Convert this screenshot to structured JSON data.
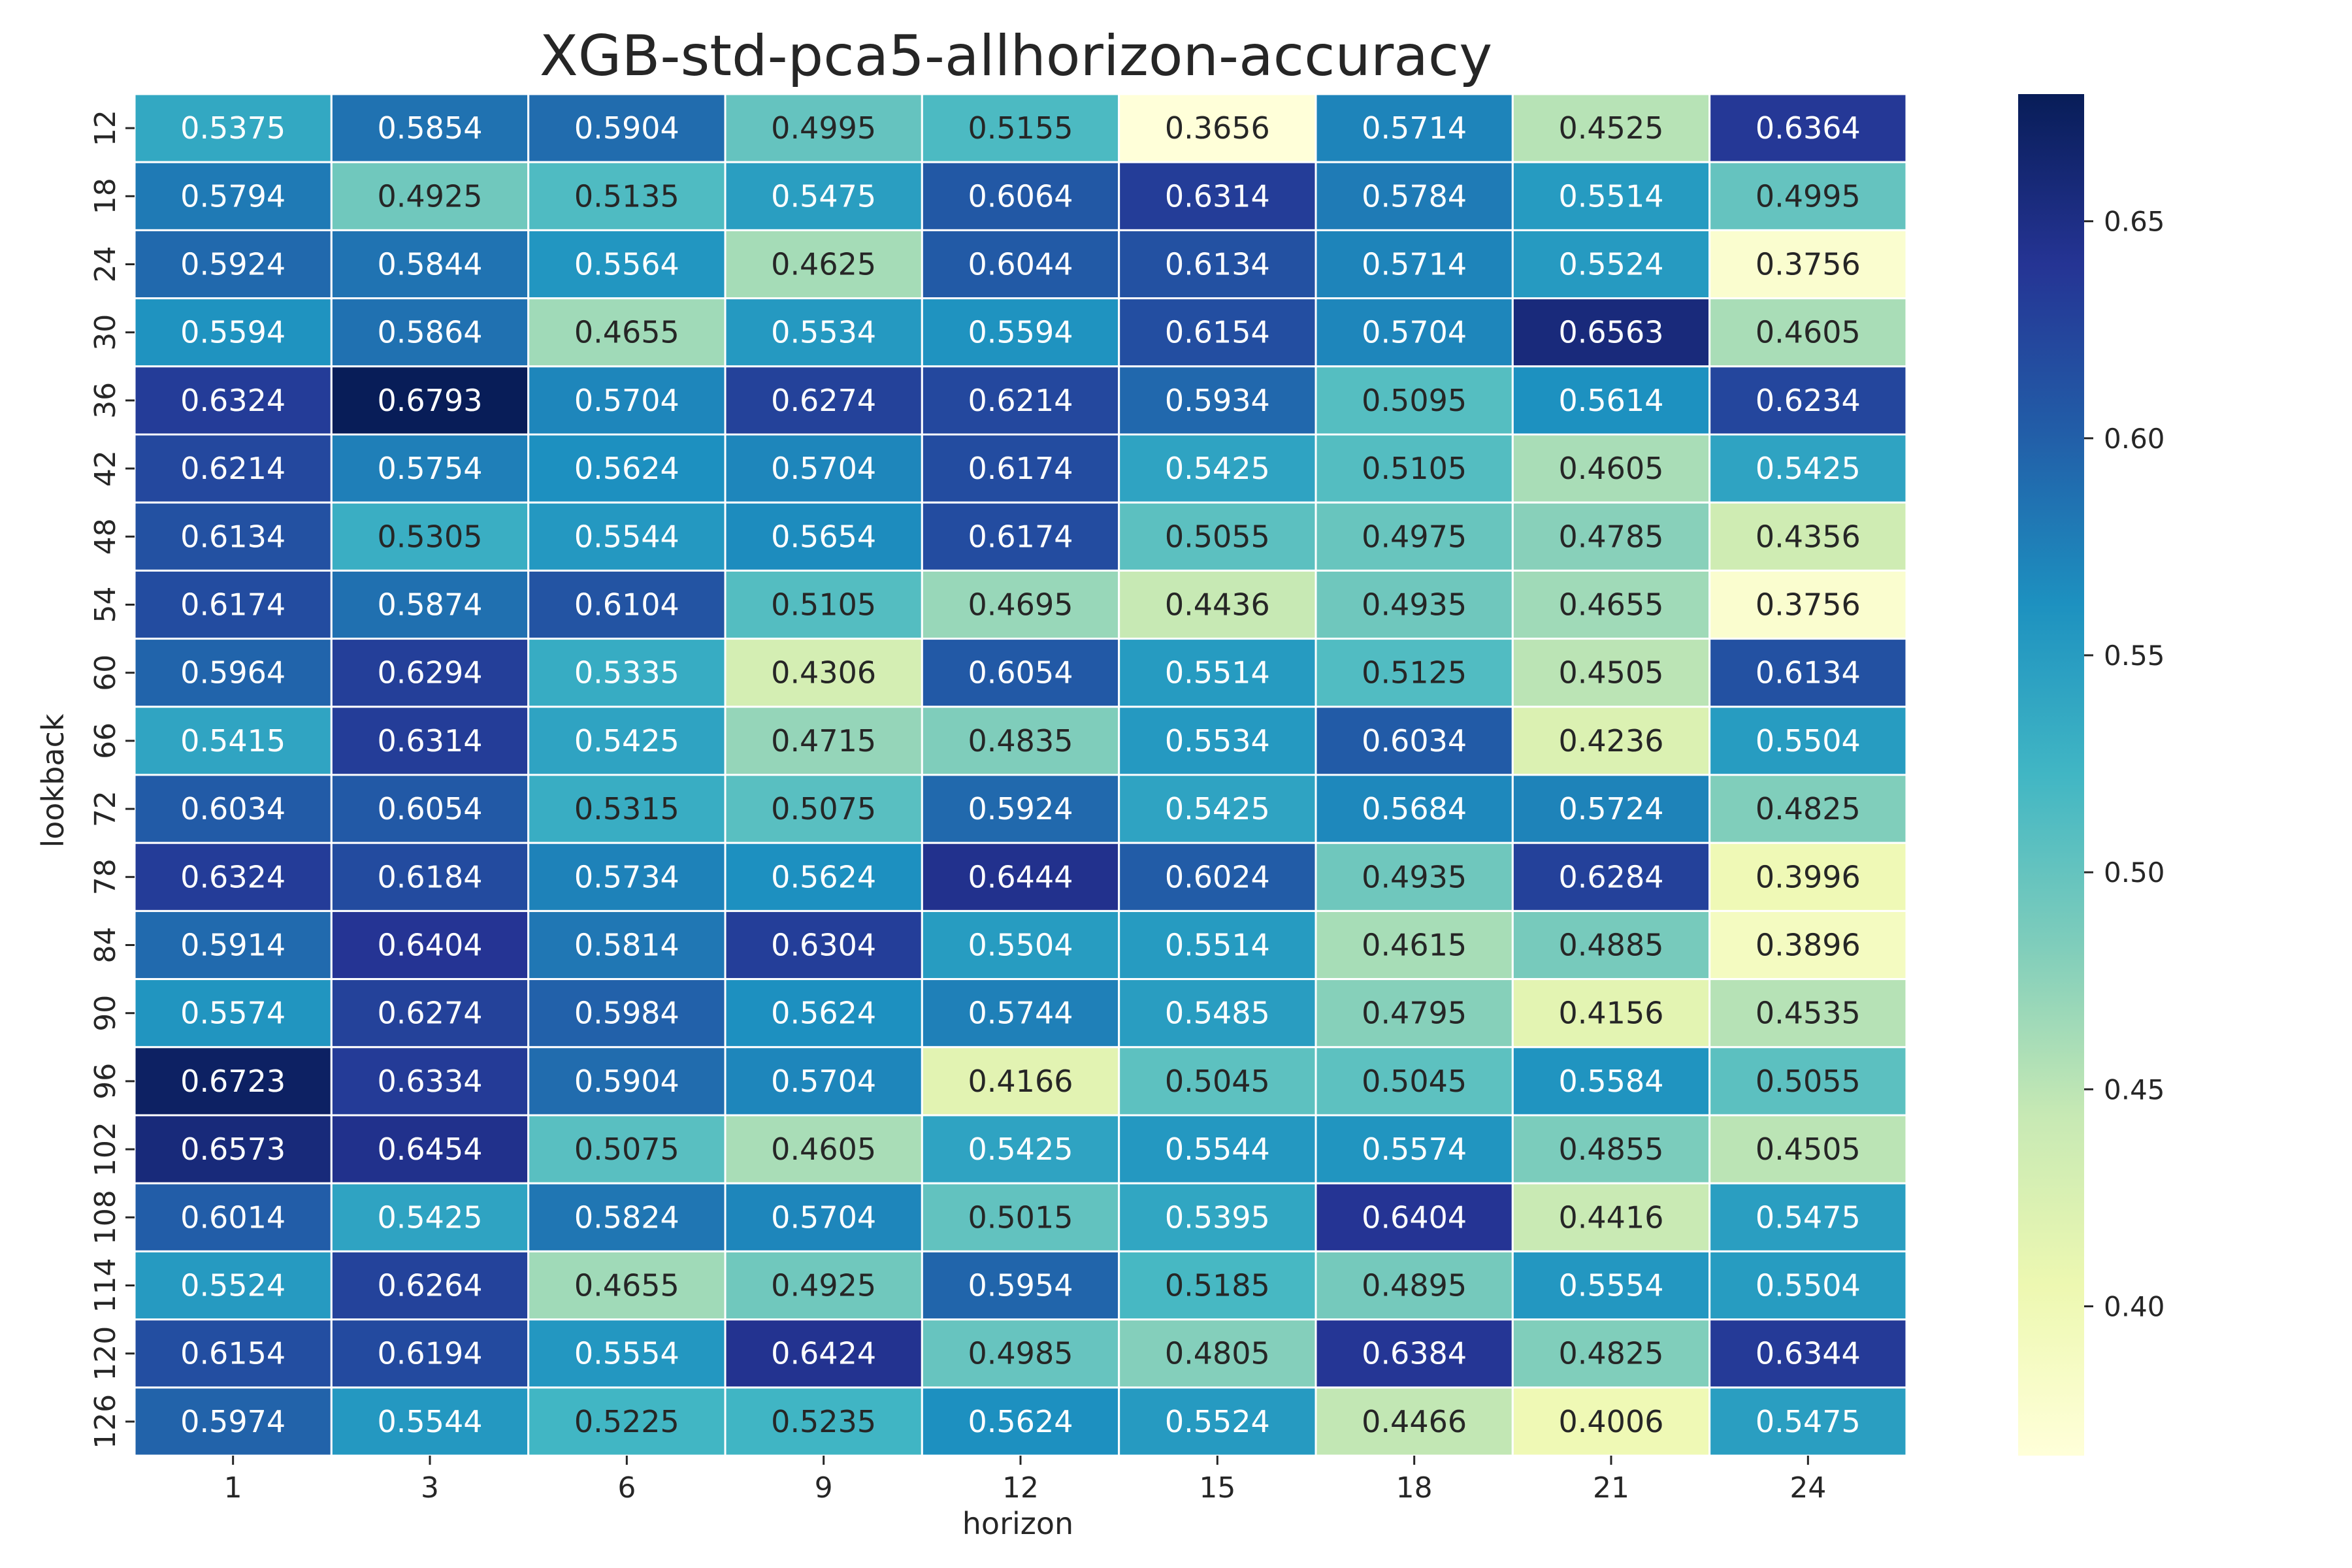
{
  "chart_data": {
    "type": "heatmap",
    "title": "XGB-std-pca5-allhorizon-accuracy",
    "xlabel": "horizon",
    "ylabel": "lookback",
    "x": [
      "1",
      "3",
      "6",
      "9",
      "12",
      "15",
      "18",
      "21",
      "24"
    ],
    "y": [
      "12",
      "18",
      "24",
      "30",
      "36",
      "42",
      "48",
      "54",
      "60",
      "66",
      "72",
      "78",
      "84",
      "90",
      "96",
      "102",
      "108",
      "114",
      "120",
      "126"
    ],
    "values": [
      [
        0.5375,
        0.5854,
        0.5904,
        0.4995,
        0.5155,
        0.3656,
        0.5714,
        0.4525,
        0.6364
      ],
      [
        0.5794,
        0.4925,
        0.5135,
        0.5475,
        0.6064,
        0.6314,
        0.5784,
        0.5514,
        0.4995
      ],
      [
        0.5924,
        0.5844,
        0.5564,
        0.4625,
        0.6044,
        0.6134,
        0.5714,
        0.5524,
        0.3756
      ],
      [
        0.5594,
        0.5864,
        0.4655,
        0.5534,
        0.5594,
        0.6154,
        0.5704,
        0.6563,
        0.4605
      ],
      [
        0.6324,
        0.6793,
        0.5704,
        0.6274,
        0.6214,
        0.5934,
        0.5095,
        0.5614,
        0.6234
      ],
      [
        0.6214,
        0.5754,
        0.5624,
        0.5704,
        0.6174,
        0.5425,
        0.5105,
        0.4605,
        0.5425
      ],
      [
        0.6134,
        0.5305,
        0.5544,
        0.5654,
        0.6174,
        0.5055,
        0.4975,
        0.4785,
        0.4356
      ],
      [
        0.6174,
        0.5874,
        0.6104,
        0.5105,
        0.4695,
        0.4436,
        0.4935,
        0.4655,
        0.3756
      ],
      [
        0.5964,
        0.6294,
        0.5335,
        0.4306,
        0.6054,
        0.5514,
        0.5125,
        0.4505,
        0.6134
      ],
      [
        0.5415,
        0.6314,
        0.5425,
        0.4715,
        0.4835,
        0.5534,
        0.6034,
        0.4236,
        0.5504
      ],
      [
        0.6034,
        0.6054,
        0.5315,
        0.5075,
        0.5924,
        0.5425,
        0.5684,
        0.5724,
        0.4825
      ],
      [
        0.6324,
        0.6184,
        0.5734,
        0.5624,
        0.6444,
        0.6024,
        0.4935,
        0.6284,
        0.3996
      ],
      [
        0.5914,
        0.6404,
        0.5814,
        0.6304,
        0.5504,
        0.5514,
        0.4615,
        0.4885,
        0.3896
      ],
      [
        0.5574,
        0.6274,
        0.5984,
        0.5624,
        0.5744,
        0.5485,
        0.4795,
        0.4156,
        0.4535
      ],
      [
        0.6723,
        0.6334,
        0.5904,
        0.5704,
        0.4166,
        0.5045,
        0.5045,
        0.5584,
        0.5055
      ],
      [
        0.6573,
        0.6454,
        0.5075,
        0.4605,
        0.5425,
        0.5544,
        0.5574,
        0.4855,
        0.4505
      ],
      [
        0.6014,
        0.5425,
        0.5824,
        0.5704,
        0.5015,
        0.5395,
        0.6404,
        0.4416,
        0.5475
      ],
      [
        0.5524,
        0.6264,
        0.4655,
        0.4925,
        0.5954,
        0.5185,
        0.4895,
        0.5554,
        0.5504
      ],
      [
        0.6154,
        0.6194,
        0.5554,
        0.6424,
        0.4985,
        0.4805,
        0.6384,
        0.4825,
        0.6344
      ],
      [
        0.5974,
        0.5544,
        0.5225,
        0.5235,
        0.5624,
        0.5524,
        0.4466,
        0.4006,
        0.5475
      ]
    ],
    "colorbar": {
      "ticks": [
        "0.40",
        "0.45",
        "0.50",
        "0.55",
        "0.60",
        "0.65"
      ],
      "range": [
        0.3656,
        0.6793
      ]
    },
    "colormap": "YlGnBu",
    "colormap_stops": [
      "#ffffd9",
      "#edf8b1",
      "#c7e9b4",
      "#7fcdbb",
      "#41b6c4",
      "#1d91c0",
      "#225ea8",
      "#253494",
      "#081d58"
    ],
    "annotation_colors": {
      "light": "#ffffff",
      "dark": "#262626"
    },
    "grid": false,
    "legend": "colorbar-right"
  }
}
